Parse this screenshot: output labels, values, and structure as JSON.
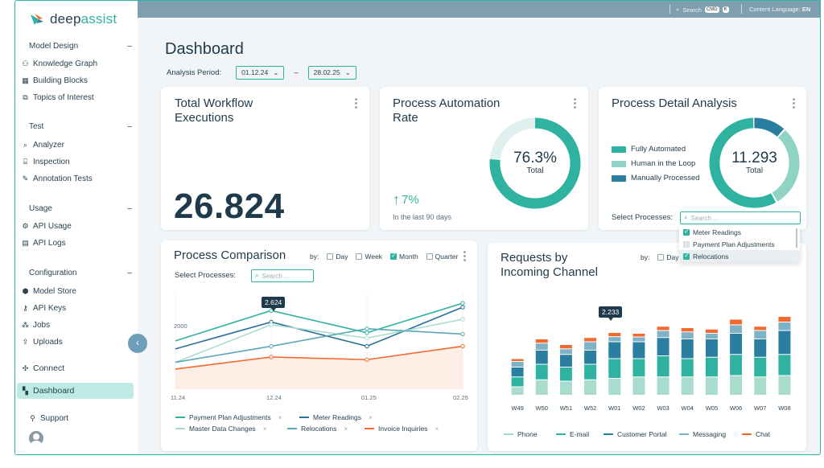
{
  "app": {
    "name_part1": "deep",
    "name_part2": "assist"
  },
  "topbar": {
    "search_label": "Search",
    "kbd1": "CMD",
    "kbd2": "K",
    "language_label": "Content Language:",
    "language_value": "EN"
  },
  "sidebar": {
    "sections": [
      {
        "title": "Model Design",
        "items": [
          {
            "label": "Knowledge Graph",
            "icon": "graph-icon"
          },
          {
            "label": "Building Blocks",
            "icon": "blocks-icon"
          },
          {
            "label": "Topics of Interest",
            "icon": "topics-icon"
          }
        ]
      },
      {
        "title": "Test",
        "items": [
          {
            "label": "Analyzer",
            "icon": "magnifier-icon"
          },
          {
            "label": "Inspection",
            "icon": "inspection-icon"
          },
          {
            "label": "Annotation Tests",
            "icon": "annotation-icon"
          }
        ]
      },
      {
        "title": "Usage",
        "items": [
          {
            "label": "API Usage",
            "icon": "api-icon"
          },
          {
            "label": "API Logs",
            "icon": "logs-icon"
          }
        ]
      },
      {
        "title": "Configuration",
        "items": [
          {
            "label": "Model Store",
            "icon": "store-icon"
          },
          {
            "label": "API Keys",
            "icon": "key-icon"
          },
          {
            "label": "Jobs",
            "icon": "jobs-icon"
          },
          {
            "label": "Uploads",
            "icon": "upload-icon"
          }
        ]
      }
    ],
    "connect": "Connect",
    "dashboard": "Dashboard",
    "support": "Support"
  },
  "page": {
    "title": "Dashboard",
    "period_label": "Analysis Period:",
    "date_from": "01.12.24",
    "date_sep": "–",
    "date_to": "28.02.25"
  },
  "cards": {
    "executions": {
      "title_line1": "Total Workflow",
      "title_line2": "Executions",
      "value": "26.824"
    },
    "automation": {
      "title_line1": "Process Automation",
      "title_line2": "Rate",
      "value": "76.3%",
      "sub": "Total",
      "fraction": 0.763,
      "trend": "7%",
      "note": "In the last 90 days"
    },
    "detail": {
      "title": "Process Detail Analysis",
      "value": "11.293",
      "sub": "Total",
      "legend": [
        {
          "label": "Fully Automated",
          "color": "#2fb3a0"
        },
        {
          "label": "Human in the Loop",
          "color": "#8fd3c5"
        },
        {
          "label": "Manually Processed",
          "color": "#2a7ea0"
        }
      ],
      "select_label": "Select Processes:",
      "search_placeholder": "Search ...",
      "dropdown": [
        {
          "label": "Meter Readings",
          "checked": true
        },
        {
          "label": "Payment Plan Adjustments",
          "checked": false
        },
        {
          "label": "Relocations",
          "checked": true
        }
      ]
    },
    "comparison": {
      "title": "Process Comparison",
      "by_label": "by:",
      "options": [
        {
          "label": "Day",
          "checked": false
        },
        {
          "label": "Week",
          "checked": false
        },
        {
          "label": "Month",
          "checked": true
        },
        {
          "label": "Quarter",
          "checked": false
        }
      ],
      "select_label": "Select Processes:",
      "search_placeholder": "Search ...",
      "tooltip": "2.624",
      "y_tick": "2000",
      "x_ticks": [
        "11.24",
        "12.24",
        "01.25",
        "02.25"
      ],
      "legend": [
        {
          "label": "Payment Plan Adjustments",
          "color": "#2fb3a0"
        },
        {
          "label": "Meter Readings",
          "color": "#2a6f95"
        },
        {
          "label": "Master Data Changes",
          "color": "#a9dccf"
        },
        {
          "label": "Relocations",
          "color": "#5ba7b6"
        },
        {
          "label": "Invoice Inquiries",
          "color": "#f26a2e"
        }
      ],
      "remove_mark": "×"
    },
    "requests": {
      "title_line1": "Requests by",
      "title_line2": "Incoming Channel",
      "by_label": "by:",
      "by_option": "Day",
      "tooltip": "2.233",
      "legend": [
        {
          "label": "Phone",
          "color": "#a9dccf"
        },
        {
          "label": "E-mail",
          "color": "#2fb3a0"
        },
        {
          "label": "Customer Portal",
          "color": "#2a7ea0"
        },
        {
          "label": "Messaging",
          "color": "#7fb2c7"
        },
        {
          "label": "Chat",
          "color": "#f26a2e"
        }
      ]
    }
  },
  "chart_data": [
    {
      "type": "line",
      "title": "Process Comparison",
      "categories": [
        "11.24",
        "12.24",
        "01.25",
        "02.25"
      ],
      "y_tick_shown": 2000,
      "ylim": [
        0,
        3200
      ],
      "series": [
        {
          "name": "Payment Plan Adjustments",
          "values": [
            1500,
            2624,
            1800,
            2900
          ]
        },
        {
          "name": "Meter Readings",
          "values": [
            1200,
            2200,
            1300,
            2750
          ]
        },
        {
          "name": "Master Data Changes",
          "values": [
            700,
            2100,
            1600,
            2300
          ]
        },
        {
          "name": "Relocations",
          "values": [
            700,
            1300,
            1950,
            1750
          ]
        },
        {
          "name": "Invoice Inquiries",
          "values": [
            450,
            900,
            800,
            1300
          ]
        }
      ]
    },
    {
      "type": "bar",
      "title": "Requests by Incoming Channel",
      "categories": [
        "W49",
        "W50",
        "W51",
        "W52",
        "W01",
        "W02",
        "W03",
        "W04",
        "W05",
        "W06",
        "W07",
        "W08"
      ],
      "stacked": true,
      "ylim": [
        0,
        3000
      ],
      "series": [
        {
          "name": "Phone",
          "values": [
            300,
            550,
            500,
            550,
            600,
            650,
            650,
            650,
            650,
            700,
            650,
            700
          ]
        },
        {
          "name": "E-mail",
          "values": [
            350,
            550,
            500,
            550,
            700,
            650,
            750,
            650,
            700,
            750,
            700,
            750
          ]
        },
        {
          "name": "Customer Portal",
          "values": [
            350,
            500,
            450,
            500,
            600,
            600,
            650,
            700,
            650,
            750,
            650,
            850
          ]
        },
        {
          "name": "Messaging",
          "values": [
            200,
            250,
            200,
            300,
            180,
            170,
            250,
            250,
            200,
            300,
            300,
            300
          ]
        },
        {
          "name": "Chat",
          "values": [
            100,
            150,
            150,
            150,
            150,
            130,
            150,
            150,
            150,
            200,
            150,
            200
          ]
        }
      ]
    }
  ]
}
